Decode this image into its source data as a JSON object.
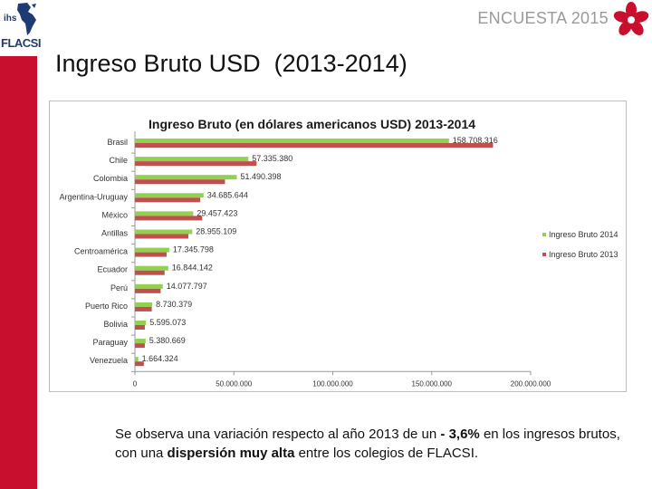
{
  "header": {
    "logo_small": "ihs",
    "logo_main": "FLACSI",
    "survey_label": "ENCUESTA 2015"
  },
  "page_title": "Ingreso Bruto USD  (2013-2014)",
  "colors": {
    "accent_red": "#c8102e",
    "series_2014": "#92d050",
    "series_2013": "#c0504d"
  },
  "chart_data": {
    "type": "bar",
    "orientation": "horizontal",
    "title": "Ingreso Bruto (en dólares americanos USD)  2013-2014",
    "categories": [
      "Brasil",
      "Chile",
      "Colombia",
      "Argentina-Uruguay",
      "México",
      "Antillas",
      "Centroamérica",
      "Ecuador",
      "Perú",
      "Puerto Rico",
      "Bolivia",
      "Paraguay",
      "Venezuela"
    ],
    "series": [
      {
        "name": "Ingreso Bruto 2014",
        "color": "#92d050",
        "values": [
          158708316,
          57335380,
          51490398,
          34685644,
          29457423,
          28955109,
          17345798,
          16844142,
          14077797,
          8730379,
          5595073,
          5380669,
          1664324
        ],
        "labels": [
          "158.708.316",
          "57.335.380",
          "51.490.398",
          "34.685.644",
          "29.457.423",
          "28.955.109",
          "17.345.798",
          "16.844.142",
          "14.077.797",
          "8.730.379",
          "5.595.073",
          "5.380.669",
          "1.664.324"
        ]
      },
      {
        "name": "Ingreso Bruto 2013",
        "color": "#c0504d",
        "values": [
          181000000,
          61500000,
          45500000,
          33000000,
          34000000,
          27000000,
          16000000,
          15000000,
          13000000,
          8500000,
          5000000,
          5000000,
          4500000
        ]
      }
    ],
    "xlim": [
      0,
      200000000
    ],
    "xticks": [
      "0",
      "50.000.000",
      "100.000.000",
      "150.000.000",
      "200.000.000"
    ],
    "legend_position": "right",
    "grid": false
  },
  "note": {
    "part1": "Se observa una variación respecto al año 2013 de un ",
    "bold1": "- 3,6%",
    "part2": " en los ingresos brutos, con una ",
    "bold2": "dispersión muy alta",
    "part3": " entre los colegios de FLACSI."
  }
}
